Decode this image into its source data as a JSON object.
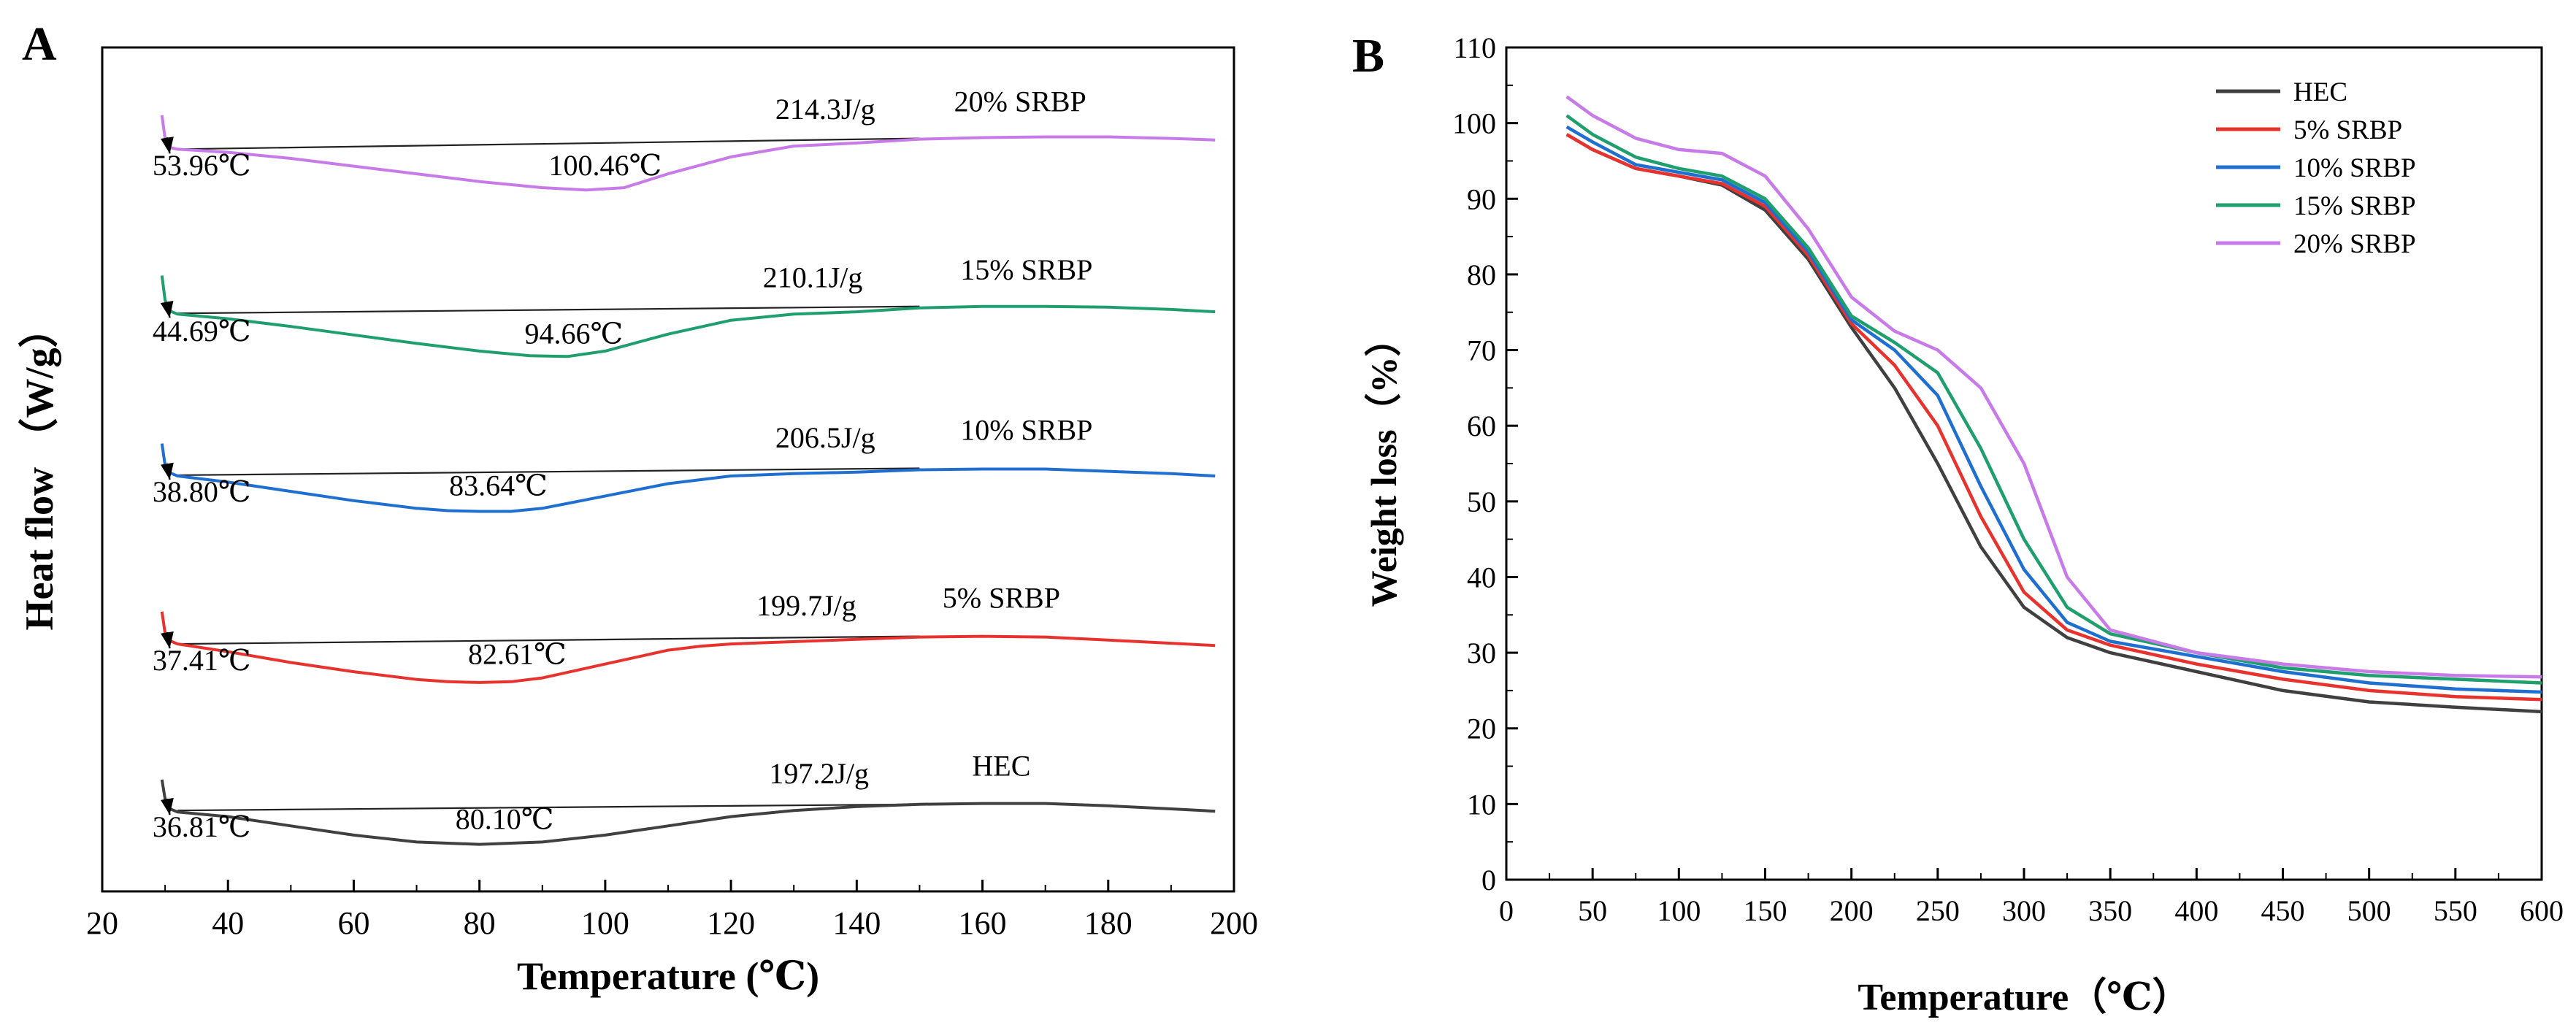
{
  "panels": {
    "A": {
      "label": "A"
    },
    "B": {
      "label": "B"
    }
  },
  "chart_data": [
    {
      "panel": "A",
      "type": "line",
      "title": "",
      "xlabel": "Temperature (℃)",
      "ylabel": "Heat flow （W/g）",
      "xlim": [
        20,
        200
      ],
      "xticks": [
        20,
        40,
        60,
        80,
        100,
        120,
        140,
        160,
        180,
        200
      ],
      "y_ticks_shown": false,
      "series": [
        {
          "name": "HEC",
          "color": "#404040",
          "offset": 0,
          "label": "HEC",
          "label_at": [
            163,
            1.15
          ],
          "enthalpy": "197.2J/g",
          "enthalpy_at": [
            134,
            1.05
          ],
          "points": [
            [
              29.5,
              1.1
            ],
            [
              30,
              0.85
            ],
            [
              30.8,
              0.72
            ],
            [
              32,
              0.68
            ],
            [
              40,
              0.62
            ],
            [
              50,
              0.5
            ],
            [
              60,
              0.38
            ],
            [
              70,
              0.29
            ],
            [
              80,
              0.26
            ],
            [
              90,
              0.29
            ],
            [
              100,
              0.38
            ],
            [
              110,
              0.5
            ],
            [
              120,
              0.62
            ],
            [
              130,
              0.7
            ],
            [
              140,
              0.75
            ],
            [
              150,
              0.78
            ],
            [
              160,
              0.79
            ],
            [
              170,
              0.79
            ],
            [
              180,
              0.76
            ],
            [
              190,
              0.72
            ],
            [
              197,
              0.69
            ]
          ],
          "baseline": [
            [
              32,
              0.7
            ],
            [
              150,
              0.78
            ]
          ],
          "onset": "36.81℃",
          "onset_pt": [
            30.5,
            0.7
          ],
          "onset_label_at": [
            28,
            0.36
          ],
          "peak": "80.10℃",
          "peak_label_at": [
            84,
            0.46
          ]
        },
        {
          "name": "5% SRBP",
          "color": "#e8322d",
          "offset": 2.18,
          "label": "5% SRBP",
          "label_at": [
            163,
            1.15
          ],
          "enthalpy": "199.7J/g",
          "enthalpy_at": [
            132,
            1.05
          ],
          "points": [
            [
              29.5,
              1.1
            ],
            [
              30,
              0.82
            ],
            [
              30.8,
              0.72
            ],
            [
              32,
              0.68
            ],
            [
              40,
              0.58
            ],
            [
              50,
              0.44
            ],
            [
              60,
              0.32
            ],
            [
              70,
              0.22
            ],
            [
              75,
              0.19
            ],
            [
              80,
              0.18
            ],
            [
              85,
              0.19
            ],
            [
              90,
              0.24
            ],
            [
              100,
              0.42
            ],
            [
              110,
              0.6
            ],
            [
              115,
              0.65
            ],
            [
              120,
              0.68
            ],
            [
              140,
              0.74
            ],
            [
              150,
              0.77
            ],
            [
              160,
              0.78
            ],
            [
              170,
              0.77
            ],
            [
              180,
              0.73
            ],
            [
              190,
              0.69
            ],
            [
              197,
              0.66
            ]
          ],
          "baseline": [
            [
              32,
              0.68
            ],
            [
              150,
              0.78
            ]
          ],
          "onset": "37.41℃",
          "onset_pt": [
            30.5,
            0.68
          ],
          "onset_label_at": [
            28,
            0.34
          ],
          "peak": "82.61℃",
          "peak_label_at": [
            86,
            0.42
          ]
        },
        {
          "name": "10% SRBP",
          "color": "#1f6fd1",
          "offset": 4.36,
          "label": "10% SRBP",
          "label_at": [
            167,
            1.15
          ],
          "enthalpy": "206.5J/g",
          "enthalpy_at": [
            135,
            1.05
          ],
          "points": [
            [
              29.5,
              1.1
            ],
            [
              30,
              0.82
            ],
            [
              30.8,
              0.72
            ],
            [
              32,
              0.68
            ],
            [
              40,
              0.6
            ],
            [
              50,
              0.48
            ],
            [
              60,
              0.36
            ],
            [
              70,
              0.26
            ],
            [
              75,
              0.23
            ],
            [
              80,
              0.22
            ],
            [
              85,
              0.22
            ],
            [
              90,
              0.26
            ],
            [
              100,
              0.42
            ],
            [
              110,
              0.58
            ],
            [
              120,
              0.68
            ],
            [
              130,
              0.71
            ],
            [
              140,
              0.73
            ],
            [
              150,
              0.76
            ],
            [
              160,
              0.77
            ],
            [
              170,
              0.77
            ],
            [
              180,
              0.74
            ],
            [
              190,
              0.71
            ],
            [
              197,
              0.68
            ]
          ],
          "baseline": [
            [
              32,
              0.69
            ],
            [
              150,
              0.78
            ]
          ],
          "onset": "38.80℃",
          "onset_pt": [
            30.5,
            0.69
          ],
          "onset_label_at": [
            28,
            0.35
          ],
          "peak": "83.64℃",
          "peak_label_at": [
            83,
            0.43
          ]
        },
        {
          "name": "15% SRBP",
          "color": "#1f9e6e",
          "offset": 6.44,
          "label": "15% SRBP",
          "label_at": [
            167,
            1.15
          ],
          "enthalpy": "210.1J/g",
          "enthalpy_at": [
            133,
            1.05
          ],
          "points": [
            [
              29.5,
              1.2
            ],
            [
              30,
              0.88
            ],
            [
              30.8,
              0.74
            ],
            [
              32,
              0.7
            ],
            [
              40,
              0.64
            ],
            [
              50,
              0.54
            ],
            [
              60,
              0.43
            ],
            [
              70,
              0.32
            ],
            [
              80,
              0.22
            ],
            [
              88,
              0.16
            ],
            [
              94,
              0.15
            ],
            [
              100,
              0.22
            ],
            [
              110,
              0.44
            ],
            [
              120,
              0.62
            ],
            [
              130,
              0.7
            ],
            [
              140,
              0.73
            ],
            [
              150,
              0.78
            ],
            [
              160,
              0.8
            ],
            [
              170,
              0.8
            ],
            [
              180,
              0.79
            ],
            [
              190,
              0.76
            ],
            [
              197,
              0.73
            ]
          ],
          "baseline": [
            [
              32,
              0.71
            ],
            [
              150,
              0.8
            ]
          ],
          "onset": "44.69℃",
          "onset_pt": [
            30.5,
            0.71
          ],
          "onset_label_at": [
            28,
            0.35
          ],
          "peak": "94.66℃",
          "peak_label_at": [
            95,
            0.32
          ]
        },
        {
          "name": "20% SRBP",
          "color": "#c77ae8",
          "offset": 8.52,
          "label": "20% SRBP",
          "label_at": [
            166,
            1.25
          ],
          "enthalpy": "214.3J/g",
          "enthalpy_at": [
            135,
            1.15
          ],
          "points": [
            [
              29.5,
              1.2
            ],
            [
              30,
              0.9
            ],
            [
              30.8,
              0.78
            ],
            [
              32,
              0.76
            ],
            [
              40,
              0.72
            ],
            [
              50,
              0.64
            ],
            [
              60,
              0.54
            ],
            [
              70,
              0.44
            ],
            [
              80,
              0.34
            ],
            [
              90,
              0.26
            ],
            [
              97,
              0.23
            ],
            [
              103,
              0.26
            ],
            [
              110,
              0.44
            ],
            [
              120,
              0.66
            ],
            [
              130,
              0.8
            ],
            [
              140,
              0.84
            ],
            [
              150,
              0.89
            ],
            [
              160,
              0.91
            ],
            [
              170,
              0.92
            ],
            [
              180,
              0.92
            ],
            [
              190,
              0.9
            ],
            [
              197,
              0.88
            ]
          ],
          "baseline": [
            [
              32,
              0.76
            ],
            [
              150,
              0.9
            ]
          ],
          "onset": "53.96℃",
          "onset_pt": [
            30.5,
            0.76
          ],
          "onset_label_at": [
            28,
            0.42
          ],
          "peak": "100.46℃",
          "peak_label_at": [
            100,
            0.42
          ]
        }
      ]
    },
    {
      "panel": "B",
      "type": "line",
      "title": "",
      "xlabel": "Temperature（℃）",
      "ylabel": "Weight loss（%）",
      "xlim": [
        0,
        600
      ],
      "ylim": [
        0,
        110
      ],
      "xticks": [
        0,
        50,
        100,
        150,
        200,
        250,
        300,
        350,
        400,
        450,
        500,
        550,
        600
      ],
      "yticks": [
        0,
        10,
        20,
        30,
        40,
        50,
        60,
        70,
        80,
        90,
        100,
        110
      ],
      "legend_position": "top-right",
      "series": [
        {
          "name": "HEC",
          "color": "#404040",
          "points": [
            [
              35,
              98.5
            ],
            [
              50,
              96.5
            ],
            [
              75,
              94
            ],
            [
              100,
              93
            ],
            [
              125,
              91.8
            ],
            [
              150,
              88.5
            ],
            [
              175,
              82
            ],
            [
              200,
              73
            ],
            [
              225,
              65
            ],
            [
              250,
              55
            ],
            [
              275,
              44
            ],
            [
              300,
              36
            ],
            [
              325,
              32
            ],
            [
              350,
              30
            ],
            [
              400,
              27.5
            ],
            [
              450,
              25
            ],
            [
              500,
              23.5
            ],
            [
              550,
              22.8
            ],
            [
              600,
              22.2
            ]
          ]
        },
        {
          "name": "5% SRBP",
          "color": "#e8322d",
          "points": [
            [
              35,
              98.5
            ],
            [
              50,
              96.5
            ],
            [
              75,
              94
            ],
            [
              100,
              93
            ],
            [
              125,
              92
            ],
            [
              150,
              89
            ],
            [
              175,
              82.5
            ],
            [
              200,
              73.5
            ],
            [
              225,
              68
            ],
            [
              250,
              60
            ],
            [
              275,
              48
            ],
            [
              300,
              38
            ],
            [
              325,
              33
            ],
            [
              350,
              31
            ],
            [
              400,
              28.5
            ],
            [
              450,
              26.5
            ],
            [
              500,
              25
            ],
            [
              550,
              24.2
            ],
            [
              600,
              23.8
            ]
          ]
        },
        {
          "name": "10% SRBP",
          "color": "#1f6fd1",
          "points": [
            [
              35,
              99.5
            ],
            [
              50,
              97.5
            ],
            [
              75,
              94.5
            ],
            [
              100,
              93.5
            ],
            [
              125,
              92.5
            ],
            [
              150,
              89.5
            ],
            [
              175,
              83
            ],
            [
              200,
              74
            ],
            [
              225,
              70
            ],
            [
              250,
              64
            ],
            [
              275,
              52
            ],
            [
              300,
              41
            ],
            [
              325,
              34
            ],
            [
              350,
              31.5
            ],
            [
              400,
              29.5
            ],
            [
              450,
              27.5
            ],
            [
              500,
              26
            ],
            [
              550,
              25.2
            ],
            [
              600,
              24.8
            ]
          ]
        },
        {
          "name": "15% SRBP",
          "color": "#1f9e6e",
          "points": [
            [
              35,
              101
            ],
            [
              50,
              98.5
            ],
            [
              75,
              95.5
            ],
            [
              100,
              94
            ],
            [
              125,
              93
            ],
            [
              150,
              90
            ],
            [
              175,
              83.5
            ],
            [
              200,
              74.5
            ],
            [
              225,
              71
            ],
            [
              250,
              67
            ],
            [
              275,
              57
            ],
            [
              300,
              45
            ],
            [
              325,
              36
            ],
            [
              350,
              32.5
            ],
            [
              400,
              30
            ],
            [
              450,
              28
            ],
            [
              500,
              27
            ],
            [
              550,
              26.5
            ],
            [
              600,
              26
            ]
          ]
        },
        {
          "name": "20% SRBP",
          "color": "#c77ae8",
          "points": [
            [
              35,
              103.5
            ],
            [
              50,
              101
            ],
            [
              75,
              98
            ],
            [
              100,
              96.5
            ],
            [
              125,
              96
            ],
            [
              150,
              93
            ],
            [
              175,
              86
            ],
            [
              200,
              77
            ],
            [
              225,
              72.5
            ],
            [
              250,
              70
            ],
            [
              275,
              65
            ],
            [
              300,
              55
            ],
            [
              325,
              40
            ],
            [
              350,
              33
            ],
            [
              400,
              30
            ],
            [
              450,
              28.5
            ],
            [
              500,
              27.5
            ],
            [
              550,
              27
            ],
            [
              600,
              26.8
            ]
          ]
        }
      ]
    }
  ]
}
